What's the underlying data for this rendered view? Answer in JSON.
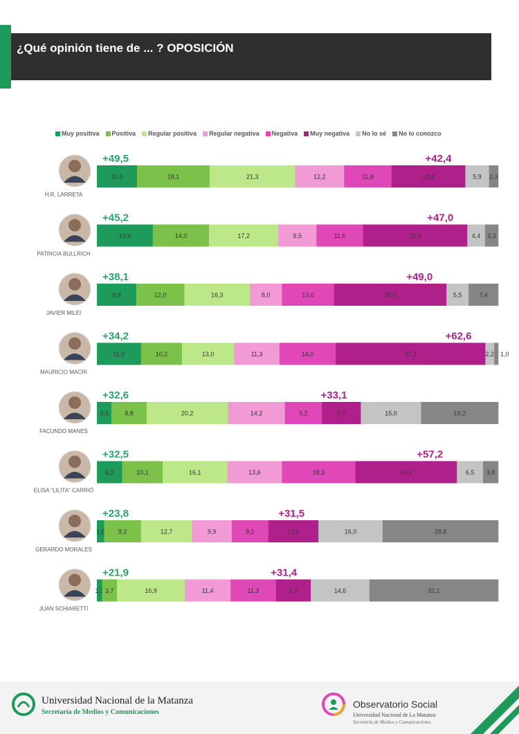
{
  "header": {
    "title": "¿Qué opinión tiene de ... ? OPOSICIÓN"
  },
  "colors": {
    "accent_green": "#1e9a5b",
    "header_dark": "#2f2f2f",
    "positive_total": "#2aa36b",
    "negative_total": "#b0208a"
  },
  "chart_data": {
    "type": "bar",
    "orientation": "horizontal-stacked-100",
    "legend_placement": "top",
    "legend": [
      {
        "name": "Muy positiva",
        "color": "#1e9a5b"
      },
      {
        "name": "Positiva",
        "color": "#7cc24a"
      },
      {
        "name": "Regular positiva",
        "color": "#bde88a"
      },
      {
        "name": "Regular negativa",
        "color": "#f29ad6"
      },
      {
        "name": "Negativa",
        "color": "#e048b8"
      },
      {
        "name": "Muy negativa",
        "color": "#b0208a"
      },
      {
        "name": "No lo sé",
        "color": "#c4c4c4"
      },
      {
        "name": "No lo conozco",
        "color": "#868686"
      }
    ],
    "rows": [
      {
        "name": "H.R. LARRETA",
        "positive_total": "+49,5",
        "negative_total": "+42,4",
        "values": [
          10.0,
          18.1,
          21.3,
          12.2,
          11.8,
          18.4,
          5.9,
          2.3
        ],
        "labels": [
          "10,0",
          "18,1",
          "21,3",
          "12,2",
          "11,8",
          "18,4",
          "5,9",
          "2,3"
        ]
      },
      {
        "name": "PATRICIA BULLRICH",
        "positive_total": "+45,2",
        "negative_total": "+47,0",
        "values": [
          13.9,
          14.0,
          17.2,
          9.5,
          11.6,
          25.9,
          4.4,
          3.3
        ],
        "labels": [
          "13,9",
          "14,0",
          "17,2",
          "9,5",
          "11,6",
          "25,9",
          "4,4",
          "3,3"
        ]
      },
      {
        "name": "JAVIER MILEI",
        "positive_total": "+38,1",
        "negative_total": "+49,0",
        "values": [
          9.8,
          12.0,
          16.3,
          8.0,
          13.0,
          28.0,
          5.5,
          7.4
        ],
        "labels": [
          "9,8",
          "12,0",
          "16,3",
          "8,0",
          "13,0",
          "28,0",
          "5,5",
          "7,4"
        ]
      },
      {
        "name": "MAURICIO MACRI",
        "positive_total": "+34,2",
        "negative_total": "+62,6",
        "values": [
          11.0,
          10.2,
          13.0,
          11.3,
          14.0,
          37.3,
          2.2,
          1.0
        ],
        "labels": [
          "11,0",
          "10,2",
          "13,0",
          "11,3",
          "14,0",
          "37,3",
          "2,2",
          "1,0"
        ]
      },
      {
        "name": "FACUNDO MANES",
        "positive_total": "+32,6",
        "negative_total": "+33,1",
        "values": [
          3.6,
          8.8,
          20.2,
          14.2,
          9.2,
          9.7,
          15.0,
          19.2
        ],
        "labels": [
          "3,6",
          "8,8",
          "20,2",
          "14,2",
          "9,2",
          "9,7",
          "15,0",
          "19,2"
        ]
      },
      {
        "name": "ELISA \"LILITA\" CARRIÓ",
        "positive_total": "+32,5",
        "negative_total": "+57,2",
        "values": [
          6.3,
          10.1,
          16.1,
          13.6,
          18.3,
          25.3,
          6.5,
          3.8
        ],
        "labels": [
          "6,3",
          "10,1",
          "16,1",
          "13,6",
          "18,3",
          "25,3",
          "6,5",
          "3,8"
        ]
      },
      {
        "name": "GERARDO MORALES",
        "positive_total": "+23,8",
        "negative_total": "+31,5",
        "values": [
          1.8,
          9.2,
          12.7,
          9.9,
          9.1,
          12.5,
          16.0,
          28.8
        ],
        "labels": [
          "1,8",
          "9,2",
          "12,7",
          "9,9",
          "9,1",
          "12,5",
          "16,0",
          "28,8"
        ]
      },
      {
        "name": "JUAN SCHIARETTI",
        "positive_total": "+21,9",
        "negative_total": "+31,4",
        "values": [
          1.3,
          3.7,
          16.9,
          11.4,
          11.3,
          8.7,
          14.6,
          32.1
        ],
        "labels": [
          "1,3",
          "3,7",
          "16,9",
          "11,4",
          "11,3",
          "8,7",
          "14,6",
          "32,1"
        ]
      }
    ]
  },
  "footer": {
    "university": "Universidad Nacional de la Matanza",
    "university_sub": "Secretaría de Medios y Comunicaciones",
    "observatorio": "Observatorio Social",
    "observatorio_sub1": "Universidad Nacional de La Matanza",
    "observatorio_sub2": "Secretaría de Medios y Comunicaciones"
  }
}
